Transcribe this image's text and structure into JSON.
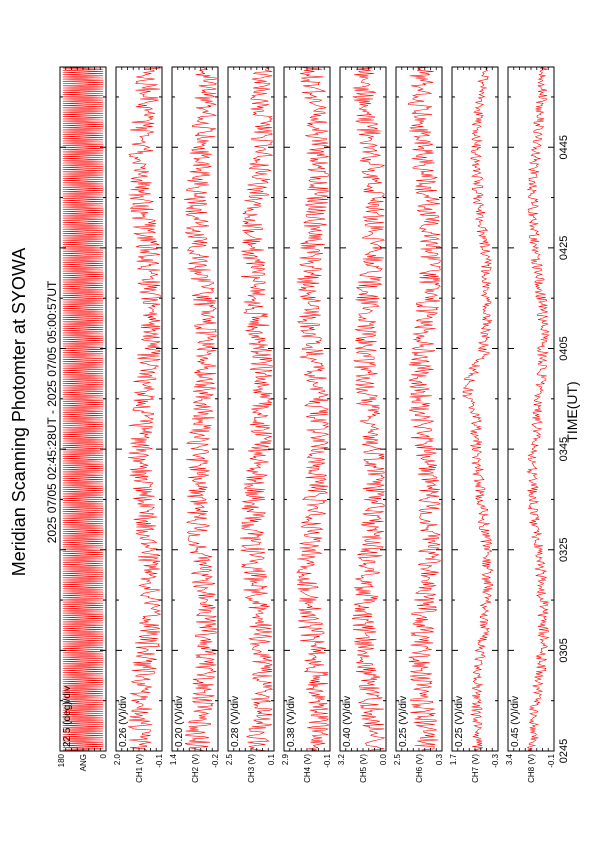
{
  "title": "Meridian Scanning Photomter at SYOWA",
  "subtitle": "2025 07/05 02:45:28UT - 2025 07/05 05:00:57UT",
  "xlabel": "TIME(UT)",
  "colors": {
    "trace": "#ff0000",
    "axis": "#000000",
    "background": "#ffffff"
  },
  "chart_data": {
    "type": "line",
    "orientation": "rotated-90-ccw",
    "title": "Meridian Scanning Photomter at SYOWA",
    "subtitle": "2025 07/05 02:45:28UT - 2025 07/05 05:00:57UT",
    "xlabel": "TIME(UT)",
    "x_ticks": [
      "0245",
      "0305",
      "0325",
      "0345",
      "0405",
      "0425",
      "0445"
    ],
    "x_range": [
      "02:45",
      "05:00:57"
    ],
    "grid": false,
    "panels": [
      {
        "ylabel": "ANG",
        "scale": "22.5 (deg)/div",
        "ytick_top": "180",
        "ytick_bottom": "0",
        "ylim": [
          0,
          180
        ]
      },
      {
        "ylabel": "CH1 (V)",
        "scale": "0.26 (V)/div",
        "ytick_top": "2.0",
        "ytick_bottom": "-0.1",
        "ylim": [
          -0.1,
          2.0
        ]
      },
      {
        "ylabel": "CH2 (V)",
        "scale": "0.20 (V)/div",
        "ytick_top": "1.4",
        "ytick_bottom": "-0.2",
        "ylim": [
          -0.2,
          1.4
        ]
      },
      {
        "ylabel": "CH3 (V)",
        "scale": "0.28 (V)/div",
        "ytick_top": "2.5",
        "ytick_bottom": "0.1",
        "ylim": [
          0.1,
          2.5
        ]
      },
      {
        "ylabel": "CH4 (V)",
        "scale": "0.38 (V)/div",
        "ytick_top": "2.9",
        "ytick_bottom": "-0.1",
        "ylim": [
          -0.1,
          2.9
        ]
      },
      {
        "ylabel": "CH5 (V)",
        "scale": "0.40 (V)/div",
        "ytick_top": "3.2",
        "ytick_bottom": "0.0",
        "ylim": [
          0.0,
          3.2
        ]
      },
      {
        "ylabel": "CH6 (V)",
        "scale": "0.25 (V)/div",
        "ytick_top": "2.5",
        "ytick_bottom": "0.3",
        "ylim": [
          0.3,
          2.5
        ]
      },
      {
        "ylabel": "CH7 (V)",
        "scale": "0.25 (V)/div",
        "ytick_top": "1.7",
        "ytick_bottom": "-0.3",
        "ylim": [
          -0.3,
          1.7
        ]
      },
      {
        "ylabel": "CH8 (V)",
        "scale": "0.45 (V)/div",
        "ytick_top": "3.4",
        "ytick_bottom": "-0.1",
        "ylim": [
          -0.1,
          3.4
        ]
      }
    ]
  }
}
